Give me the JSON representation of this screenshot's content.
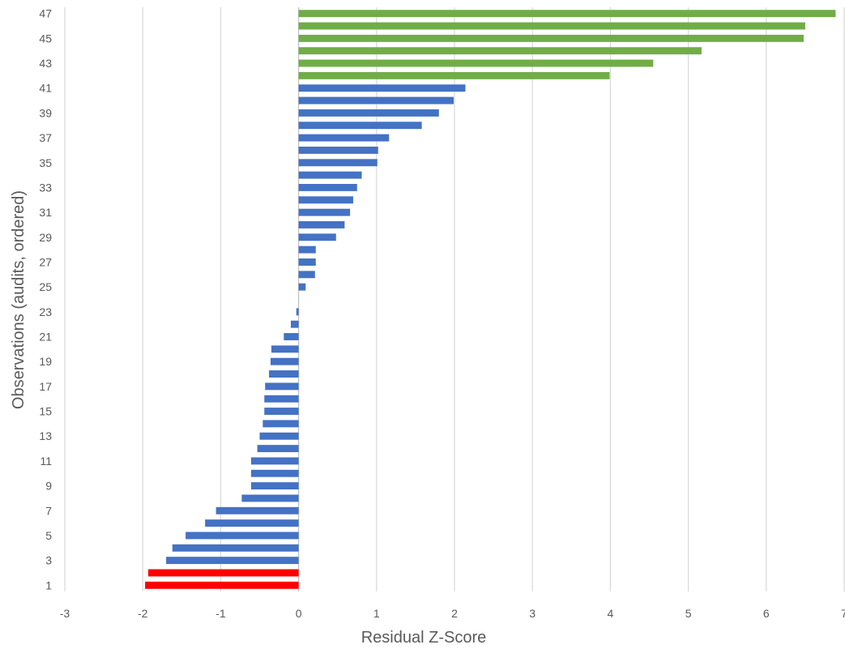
{
  "chart_data": {
    "type": "bar",
    "orientation": "horizontal",
    "title": "",
    "xlabel": "Residual Z-Score",
    "ylabel": "Observations (audits, ordered)",
    "xlim": [
      -3,
      7
    ],
    "xticks": [
      -3,
      -2,
      -1,
      0,
      1,
      2,
      3,
      4,
      5,
      6,
      7
    ],
    "yticks": [
      1,
      3,
      5,
      7,
      9,
      11,
      13,
      15,
      17,
      19,
      21,
      23,
      25,
      27,
      29,
      31,
      33,
      35,
      37,
      39,
      41,
      43,
      45,
      47
    ],
    "grid": "vertical",
    "legend": "none",
    "colors": {
      "low": "#ff0000",
      "normal": "#4472c4",
      "high": "#70ad47"
    },
    "categories": [
      1,
      2,
      3,
      4,
      5,
      6,
      7,
      8,
      9,
      10,
      11,
      12,
      13,
      14,
      15,
      16,
      17,
      18,
      19,
      20,
      21,
      22,
      23,
      24,
      25,
      26,
      27,
      28,
      29,
      30,
      31,
      32,
      33,
      34,
      35,
      36,
      37,
      38,
      39,
      40,
      41,
      42,
      43,
      44,
      45,
      46,
      47
    ],
    "values": [
      -1.97,
      -1.93,
      -1.7,
      -1.62,
      -1.45,
      -1.2,
      -1.06,
      -0.73,
      -0.61,
      -0.61,
      -0.61,
      -0.53,
      -0.5,
      -0.46,
      -0.44,
      -0.44,
      -0.43,
      -0.38,
      -0.36,
      -0.35,
      -0.19,
      -0.1,
      -0.03,
      0.0,
      0.09,
      0.21,
      0.22,
      0.22,
      0.48,
      0.59,
      0.66,
      0.7,
      0.75,
      0.81,
      1.01,
      1.02,
      1.16,
      1.58,
      1.8,
      1.99,
      2.14,
      3.99,
      4.55,
      5.17,
      6.48,
      6.5,
      6.89
    ],
    "bar_groups": [
      "low",
      "low",
      "normal",
      "normal",
      "normal",
      "normal",
      "normal",
      "normal",
      "normal",
      "normal",
      "normal",
      "normal",
      "normal",
      "normal",
      "normal",
      "normal",
      "normal",
      "normal",
      "normal",
      "normal",
      "normal",
      "normal",
      "normal",
      "normal",
      "normal",
      "normal",
      "normal",
      "normal",
      "normal",
      "normal",
      "normal",
      "normal",
      "normal",
      "normal",
      "normal",
      "normal",
      "normal",
      "normal",
      "normal",
      "normal",
      "normal",
      "high",
      "high",
      "high",
      "high",
      "high",
      "high"
    ]
  }
}
